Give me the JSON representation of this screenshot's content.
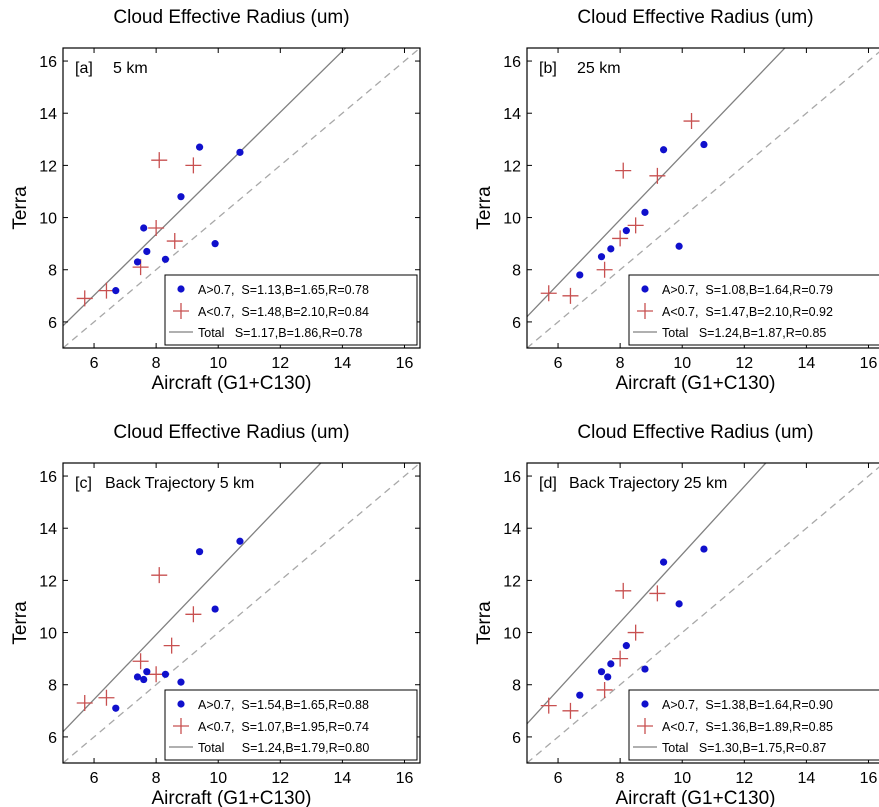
{
  "colors": {
    "blue": "#1010cc",
    "red": "#c85050",
    "solid_line": "#808080",
    "dashed_line": "#a8a8a8",
    "frame": "#000000"
  },
  "chart_data": [
    {
      "type": "scatter",
      "panel_label": "[a]",
      "subtitle": "5 km",
      "title": "Cloud Effective Radius (um)",
      "xlabel": "Aircraft (G1+C130)",
      "ylabel": "Terra",
      "xlim": [
        5,
        16.5
      ],
      "ylim": [
        5,
        16.5
      ],
      "xticks": [
        6,
        8,
        10,
        12,
        14,
        16
      ],
      "yticks": [
        6,
        8,
        10,
        12,
        14,
        16
      ],
      "legend_position": "bottom-right",
      "series": [
        {
          "name": "A>0.7,  S=1.13,B=1.65,R=0.78",
          "marker": "dot",
          "points": [
            [
              6.7,
              7.2
            ],
            [
              7.4,
              8.3
            ],
            [
              7.6,
              9.6
            ],
            [
              7.7,
              8.7
            ],
            [
              8.3,
              8.4
            ],
            [
              8.8,
              10.8
            ],
            [
              9.4,
              12.7
            ],
            [
              9.9,
              9.0
            ],
            [
              10.7,
              12.5
            ]
          ]
        },
        {
          "name": "A<0.7,  S=1.48,B=2.10,R=0.84",
          "marker": "plus",
          "points": [
            [
              5.7,
              6.9
            ],
            [
              6.4,
              7.2
            ],
            [
              7.5,
              8.1
            ],
            [
              8.0,
              9.6
            ],
            [
              8.1,
              12.2
            ],
            [
              8.6,
              9.1
            ],
            [
              9.2,
              12.0
            ]
          ]
        },
        {
          "name": "Total   S=1.17,B=1.86,R=0.78",
          "marker": "line"
        }
      ],
      "fit_line": {
        "slope": 1.17,
        "intercept": 0.0
      },
      "reference_line": {
        "slope": 1.0,
        "intercept": 0.0
      }
    },
    {
      "type": "scatter",
      "panel_label": "[b]",
      "subtitle": "25 km",
      "title": "Cloud Effective Radius (um)",
      "xlabel": "Aircraft (G1+C130)",
      "ylabel": "Terra",
      "xlim": [
        5,
        16.5
      ],
      "ylim": [
        5,
        16.5
      ],
      "xticks": [
        6,
        8,
        10,
        12,
        14,
        16
      ],
      "yticks": [
        6,
        8,
        10,
        12,
        14,
        16
      ],
      "legend_position": "bottom-right",
      "series": [
        {
          "name": "A>0.7,  S=1.08,B=1.64,R=0.79",
          "marker": "dot",
          "points": [
            [
              6.7,
              7.8
            ],
            [
              7.4,
              8.5
            ],
            [
              7.7,
              8.8
            ],
            [
              8.2,
              9.5
            ],
            [
              8.8,
              10.2
            ],
            [
              9.4,
              12.6
            ],
            [
              9.9,
              8.9
            ],
            [
              10.7,
              12.8
            ]
          ]
        },
        {
          "name": "A<0.7,  S=1.47,B=2.10,R=0.92",
          "marker": "plus",
          "points": [
            [
              5.7,
              7.1
            ],
            [
              6.4,
              7.0
            ],
            [
              7.5,
              8.0
            ],
            [
              8.0,
              9.2
            ],
            [
              8.1,
              11.8
            ],
            [
              8.5,
              9.7
            ],
            [
              9.2,
              11.6
            ],
            [
              10.3,
              13.7
            ]
          ]
        },
        {
          "name": "Total   S=1.24,B=1.87,R=0.85",
          "marker": "line"
        }
      ],
      "fit_line": {
        "slope": 1.24,
        "intercept": 0.0
      },
      "reference_line": {
        "slope": 1.0,
        "intercept": 0.0
      }
    },
    {
      "type": "scatter",
      "panel_label": "[c]",
      "subtitle": "Back Trajectory 5 km",
      "title": "Cloud Effective Radius (um)",
      "xlabel": "Aircraft (G1+C130)",
      "ylabel": "Terra",
      "xlim": [
        5,
        16.5
      ],
      "ylim": [
        5,
        16.5
      ],
      "xticks": [
        6,
        8,
        10,
        12,
        14,
        16
      ],
      "yticks": [
        6,
        8,
        10,
        12,
        14,
        16
      ],
      "legend_position": "bottom-right",
      "series": [
        {
          "name": "A>0.7,  S=1.54,B=1.65,R=0.88",
          "marker": "dot",
          "points": [
            [
              6.7,
              7.1
            ],
            [
              7.4,
              8.3
            ],
            [
              7.6,
              8.2
            ],
            [
              7.7,
              8.5
            ],
            [
              8.3,
              8.4
            ],
            [
              8.8,
              8.1
            ],
            [
              9.4,
              13.1
            ],
            [
              9.9,
              10.9
            ],
            [
              10.7,
              13.5
            ]
          ]
        },
        {
          "name": "A<0.7,  S=1.07,B=1.95,R=0.74",
          "marker": "plus",
          "points": [
            [
              5.7,
              7.3
            ],
            [
              6.4,
              7.5
            ],
            [
              7.5,
              8.9
            ],
            [
              8.0,
              8.4
            ],
            [
              8.1,
              12.2
            ],
            [
              8.5,
              9.5
            ],
            [
              9.2,
              10.7
            ]
          ]
        },
        {
          "name": "Total     S=1.24,B=1.79,R=0.80",
          "marker": "line"
        }
      ],
      "fit_line": {
        "slope": 1.24,
        "intercept": 0.0
      },
      "reference_line": {
        "slope": 1.0,
        "intercept": 0.0
      }
    },
    {
      "type": "scatter",
      "panel_label": "[d]",
      "subtitle": "Back Trajectory 25 km",
      "title": "Cloud Effective Radius (um)",
      "xlabel": "Aircraft (G1+C130)",
      "ylabel": "Terra",
      "xlim": [
        5,
        16.5
      ],
      "ylim": [
        5,
        16.5
      ],
      "xticks": [
        6,
        8,
        10,
        12,
        14,
        16
      ],
      "yticks": [
        6,
        8,
        10,
        12,
        14,
        16
      ],
      "legend_position": "bottom-right",
      "series": [
        {
          "name": "A>0.7,  S=1.38,B=1.64,R=0.90",
          "marker": "dot",
          "points": [
            [
              6.7,
              7.6
            ],
            [
              7.4,
              8.5
            ],
            [
              7.6,
              8.3
            ],
            [
              7.7,
              8.8
            ],
            [
              8.2,
              9.5
            ],
            [
              8.8,
              8.6
            ],
            [
              9.4,
              12.7
            ],
            [
              9.9,
              11.1
            ],
            [
              10.7,
              13.2
            ]
          ]
        },
        {
          "name": "A<0.7,  S=1.36,B=1.89,R=0.85",
          "marker": "plus",
          "points": [
            [
              5.7,
              7.2
            ],
            [
              6.4,
              7.0
            ],
            [
              7.5,
              7.8
            ],
            [
              8.0,
              9.0
            ],
            [
              8.1,
              11.6
            ],
            [
              8.5,
              10.0
            ],
            [
              9.2,
              11.5
            ]
          ]
        },
        {
          "name": "Total   S=1.30,B=1.75,R=0.87",
          "marker": "line"
        }
      ],
      "fit_line": {
        "slope": 1.3,
        "intercept": 0.0
      },
      "reference_line": {
        "slope": 1.0,
        "intercept": 0.0
      }
    }
  ]
}
